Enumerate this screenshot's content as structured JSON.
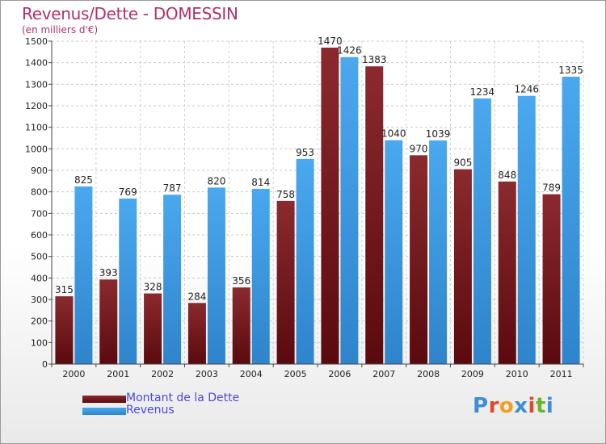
{
  "header": {
    "title": "Revenus/Dette - DOMESSIN",
    "subtitle": "(en milliers d'€)"
  },
  "chart_data": {
    "type": "bar",
    "categories": [
      "2000",
      "2001",
      "2002",
      "2003",
      "2004",
      "2005",
      "2006",
      "2007",
      "2008",
      "2009",
      "2010",
      "2011"
    ],
    "series": [
      {
        "name": "Montant de la Dette",
        "color": "#7a1c22",
        "values": [
          315,
          393,
          328,
          284,
          356,
          758,
          1470,
          1383,
          970,
          905,
          848,
          789
        ]
      },
      {
        "name": "Revenus",
        "color": "#3f9fe6",
        "values": [
          825,
          769,
          787,
          820,
          814,
          953,
          1426,
          1040,
          1039,
          1234,
          1246,
          1335
        ]
      }
    ],
    "ylim": [
      0,
      1500
    ],
    "yticks": [
      0,
      100,
      200,
      300,
      400,
      500,
      600,
      700,
      800,
      900,
      1000,
      1100,
      1200,
      1300,
      1400,
      1500
    ],
    "grid": true,
    "legend_position": "bottom-left"
  },
  "legend": {
    "debt_label": "Montant de la Dette",
    "revenue_label": "Revenus"
  },
  "logo": {
    "letters": [
      "P",
      "r",
      "o",
      "x",
      "i",
      "t",
      "i"
    ],
    "colors": [
      "#3b8fd6",
      "#e0482a",
      "#f0a020",
      "#3b8fd6",
      "#e0482a",
      "#6bb42a",
      "#3b8fd6"
    ]
  }
}
